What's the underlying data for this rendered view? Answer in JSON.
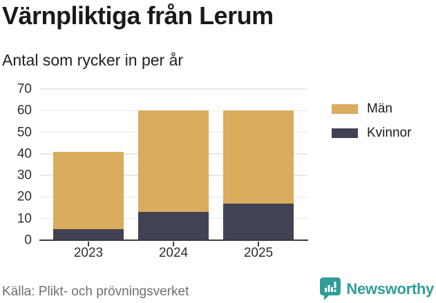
{
  "chart_data": {
    "type": "bar",
    "stacked": true,
    "title": "Värnpliktiga från Lerum",
    "subtitle": "Antal som rycker in per år",
    "xlabel": "",
    "ylabel": "",
    "categories": [
      "2023",
      "2024",
      "2025"
    ],
    "series": [
      {
        "name": "Kvinnor",
        "color": "#414254",
        "values": [
          5,
          13,
          17
        ]
      },
      {
        "name": "Män",
        "color": "#d9ac5e",
        "values": [
          36,
          47,
          43
        ]
      }
    ],
    "totals": [
      41,
      60,
      60
    ],
    "ylim": [
      0,
      70
    ],
    "yticks": [
      0,
      10,
      20,
      30,
      40,
      50,
      60,
      70
    ],
    "grid": true,
    "legend_position": "right"
  },
  "legend": {
    "items": [
      {
        "label": "Män",
        "color": "#d9ac5e"
      },
      {
        "label": "Kvinnor",
        "color": "#414254"
      }
    ]
  },
  "footer": {
    "source": "Källa: Plikt- och prövningsverket",
    "brand_name": "Newsworthy",
    "brand_color": "#2f9e96"
  },
  "colors": {
    "background": "#ffffff",
    "grid": "#e7e7e9",
    "axis": "#3a3a45",
    "tick_text": "#2e2e33",
    "muted_text": "#6e6e76"
  }
}
